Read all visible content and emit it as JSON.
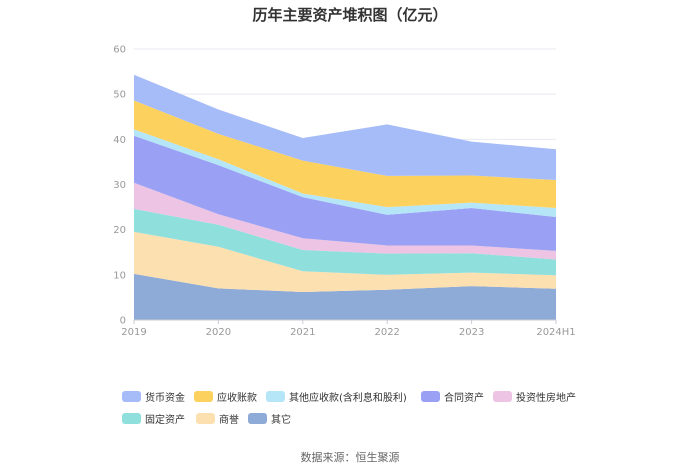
{
  "chart_data": {
    "type": "area",
    "stacked": true,
    "title": "历年主要资产堆积图（亿元）",
    "x": [
      "2019",
      "2020",
      "2021",
      "2022",
      "2023",
      "2024H1"
    ],
    "ylim": [
      0,
      60
    ],
    "yticks": [
      0,
      10,
      20,
      30,
      40,
      50,
      60
    ],
    "grid": true,
    "legend_position": "bottom",
    "series": [
      {
        "name": "其它",
        "color": "#8eaad6",
        "values": [
          10.2,
          7.0,
          6.2,
          6.7,
          7.5,
          6.9
        ]
      },
      {
        "name": "商誉",
        "color": "#fde0b0",
        "values": [
          9.3,
          9.2,
          4.6,
          3.3,
          3.0,
          3.0
        ]
      },
      {
        "name": "固定资产",
        "color": "#8fdfdd",
        "values": [
          5.1,
          4.9,
          4.7,
          4.7,
          4.3,
          3.5
        ]
      },
      {
        "name": "投资性房地产",
        "color": "#edc4e3",
        "values": [
          5.8,
          2.3,
          2.6,
          1.8,
          1.7,
          1.9
        ]
      },
      {
        "name": "合同资产",
        "color": "#9aa1f4",
        "values": [
          10.4,
          10.9,
          9.1,
          6.8,
          8.3,
          7.5
        ]
      },
      {
        "name": "其他应收款(含利息和股利)",
        "color": "#b5e6f8",
        "values": [
          1.4,
          1.3,
          0.8,
          1.7,
          1.2,
          2.0
        ]
      },
      {
        "name": "应收账款",
        "color": "#fdd15d",
        "values": [
          6.4,
          5.6,
          7.3,
          6.9,
          6.0,
          6.2
        ]
      },
      {
        "name": "货币资金",
        "color": "#a6bcf8",
        "values": [
          5.7,
          5.4,
          5.0,
          11.4,
          7.5,
          6.8
        ]
      }
    ]
  },
  "legend": [
    {
      "label": "货币资金",
      "color": "#a6bcf8"
    },
    {
      "label": "应收账款",
      "color": "#fdd15d"
    },
    {
      "label": "其他应收款(含利息和股利)",
      "color": "#b5e6f8"
    },
    {
      "label": "合同资产",
      "color": "#9aa1f4"
    },
    {
      "label": "投资性房地产",
      "color": "#edc4e3"
    },
    {
      "label": "固定资产",
      "color": "#8fdfdd"
    },
    {
      "label": "商誉",
      "color": "#fde0b0"
    },
    {
      "label": "其它",
      "color": "#8eaad6"
    }
  ],
  "source": "数据来源：恒生聚源"
}
